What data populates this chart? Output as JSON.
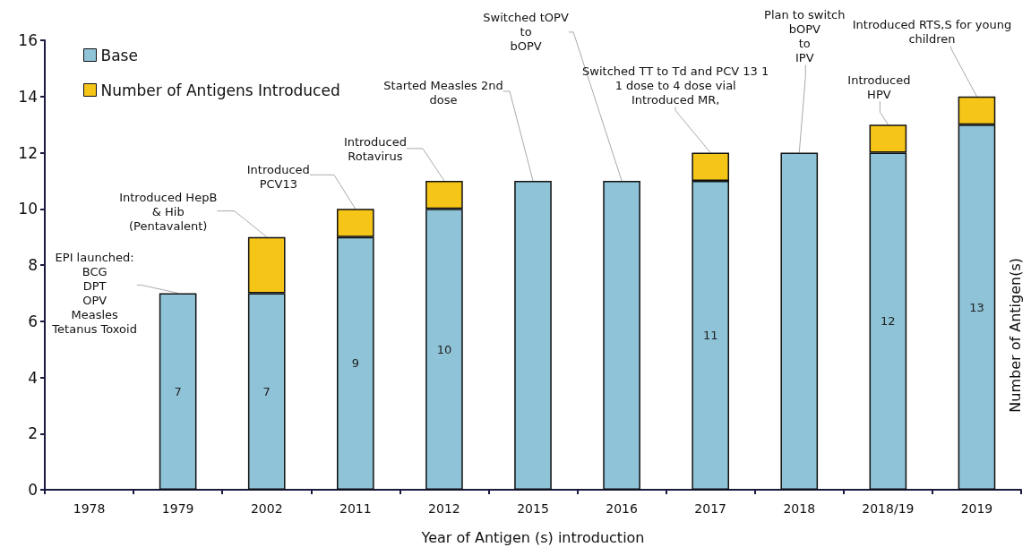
{
  "chart_data": {
    "type": "bar",
    "stacked": true,
    "xlabel": "Year of Antigen (s) introduction",
    "ylabel": "Number of Antigen(s)",
    "categories": [
      "1978",
      "1979",
      "2002",
      "2011",
      "2012",
      "2015",
      "2016",
      "2017",
      "2018",
      "2018/19",
      "2019"
    ],
    "series": [
      {
        "name": "Base",
        "color": "#8fc3d8",
        "values": [
          null,
          7,
          7,
          9,
          10,
          11,
          11,
          11,
          12,
          12,
          13
        ],
        "value_labels": [
          null,
          "7",
          "7",
          "9",
          "10",
          null,
          null,
          "11",
          null,
          "12",
          "13"
        ]
      },
      {
        "name": "Number of Antigens Introduced",
        "color": "#f5c518",
        "values": [
          null,
          null,
          2,
          1,
          1,
          null,
          null,
          1,
          null,
          1,
          1
        ]
      }
    ],
    "ylim": [
      0,
      16
    ],
    "yticks": [
      0,
      2,
      4,
      6,
      8,
      10,
      12,
      14,
      16
    ],
    "grid": false,
    "legend": "top left",
    "annotations": [
      {
        "text": "EPI launched:\nBCG\nDPT\nOPV\nMeasles\nTetanus Toxoid",
        "x": "1979",
        "y": 7
      },
      {
        "text": "Introduced HepB\n& Hib\n(Pentavalent)",
        "x": "2002",
        "y": 9
      },
      {
        "text": "Introduced\nPCV13",
        "x": "2011",
        "y": 10
      },
      {
        "text": "Introduced\nRotavirus",
        "x": "2012",
        "y": 11
      },
      {
        "text": "Started Measles 2nd\ndose",
        "x": "2015",
        "y": 11
      },
      {
        "text": "Switched tOPV\nto\nbOPV",
        "x": "2016",
        "y": 11
      },
      {
        "text": "Switched TT to Td and PCV 13 1\n1 dose to 4 dose vial\nIntroduced MR,",
        "x": "2017",
        "y": 12
      },
      {
        "text": "Plan to switch\nbOPV\nto\nIPV",
        "x": "2018",
        "y": 12
      },
      {
        "text": "Introduced\nHPV",
        "x": "2018/19",
        "y": 13
      },
      {
        "text": "Introduced RTS,S for young\nchildren",
        "x": "2019",
        "y": 14
      }
    ]
  }
}
